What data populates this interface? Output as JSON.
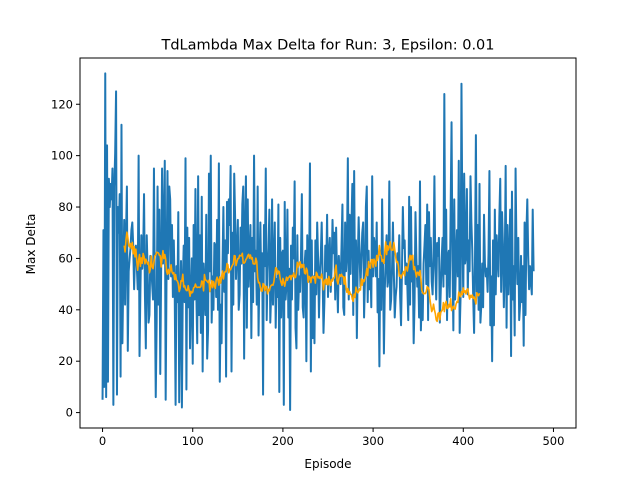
{
  "chart_data": {
    "type": "line",
    "title": "TdLambda Max Delta for Run: 3, Epsilon: 0.01",
    "xlabel": "Episode",
    "ylabel": "Max Delta",
    "xlim": [
      -25,
      525
    ],
    "ylim": [
      -6,
      138
    ],
    "xticks": [
      0,
      100,
      200,
      300,
      400,
      500
    ],
    "yticks": [
      0,
      20,
      40,
      60,
      80,
      100,
      120
    ],
    "grid": false,
    "legend": "none",
    "series": [
      {
        "color": "#1f77b4",
        "x_start": 0,
        "x_step": 1,
        "values": [
          5,
          71,
          10,
          132,
          6,
          104,
          12,
          91,
          80,
          89,
          83,
          95,
          3,
          88,
          101,
          125,
          7,
          80,
          70,
          85,
          14,
          112,
          27,
          52,
          75,
          42,
          68,
          88,
          24,
          55,
          60,
          64,
          71,
          74,
          65,
          48,
          61,
          65,
          57,
          48,
          100,
          22,
          48,
          69,
          56,
          61,
          85,
          46,
          25,
          69,
          55,
          35,
          38,
          61,
          57,
          50,
          44,
          95,
          48,
          6,
          35,
          88,
          42,
          79,
          15,
          56,
          95,
          58,
          70,
          98,
          5,
          55,
          94,
          52,
          88,
          83,
          53,
          73,
          45,
          67,
          48,
          3,
          57,
          43,
          78,
          4,
          42,
          59,
          2,
          51,
          65,
          43,
          99,
          9,
          72,
          41,
          68,
          25,
          45,
          60,
          19,
          73,
          44,
          87,
          46,
          27,
          92,
          38,
          69,
          31,
          84,
          16,
          58,
          48,
          38,
          77,
          21,
          32,
          93,
          55,
          100,
          35,
          53,
          40,
          66,
          65,
          45,
          75,
          40,
          97,
          12,
          42,
          27,
          56,
          80,
          47,
          67,
          14,
          82,
          62,
          83,
          73,
          96,
          16,
          70,
          42,
          93,
          76,
          52,
          63,
          75,
          40,
          46,
          72,
          58,
          81,
          88,
          21,
          70,
          92,
          33,
          83,
          49,
          61,
          73,
          29,
          68,
          43,
          100,
          55,
          63,
          42,
          88,
          30,
          56,
          74,
          49,
          62,
          7,
          73,
          57,
          95,
          36,
          55,
          64,
          79,
          35,
          47,
          83,
          42,
          58,
          74,
          33,
          52,
          45,
          81,
          8,
          68,
          37,
          62,
          63,
          3,
          82,
          44,
          50,
          79,
          37,
          56,
          1,
          65,
          44,
          72,
          60,
          90,
          33,
          25,
          69,
          40,
          53,
          47,
          60,
          85,
          41,
          37,
          57,
          63,
          20,
          69,
          53,
          51,
          97,
          16,
          67,
          29,
          53,
          27,
          67,
          46,
          74,
          60,
          37,
          54,
          61,
          74,
          54,
          31,
          43,
          65,
          55,
          77,
          45,
          61,
          68,
          47,
          56,
          75,
          62,
          70,
          44,
          72,
          53,
          39,
          61,
          52,
          50,
          65,
          81,
          41,
          38,
          74,
          55,
          62,
          99,
          44,
          77,
          54,
          73,
          89,
          38,
          94,
          46,
          67,
          29,
          59,
          76,
          61,
          49,
          60,
          70,
          74,
          37,
          52,
          80,
          88,
          43,
          63,
          48,
          58,
          41,
          92,
          53,
          68,
          65,
          53,
          74,
          39,
          52,
          18,
          63,
          40,
          83,
          57,
          23,
          48,
          60,
          69,
          49,
          52,
          90,
          40,
          44,
          56,
          74,
          55,
          37,
          45,
          49,
          62,
          56,
          69,
          45,
          34,
          55,
          80,
          64,
          67,
          50,
          58,
          49,
          36,
          84,
          42,
          80,
          51,
          58,
          27,
          43,
          78,
          60,
          49,
          57,
          37,
          90,
          32,
          46,
          36,
          58,
          65,
          73,
          50,
          81,
          36,
          78,
          57,
          68,
          51,
          46,
          61,
          92,
          56,
          44,
          66,
          61,
          68,
          35,
          47,
          59,
          68,
          49,
          124,
          54,
          79,
          36,
          61,
          63,
          45,
          79,
          113,
          59,
          32,
          83,
          44,
          60,
          71,
          53,
          98,
          31,
          45,
          128,
          72,
          45,
          93,
          58,
          61,
          87,
          46,
          67,
          55,
          92,
          74,
          63,
          45,
          31,
          59,
          108,
          47,
          73,
          40,
          89,
          35,
          42,
          58,
          41,
          77,
          58,
          53,
          56,
          47,
          62,
          94,
          34,
          53,
          20,
          67,
          34,
          79,
          46,
          69,
          61,
          53,
          76,
          91,
          47,
          78,
          65,
          41,
          57,
          96,
          33,
          73,
          46,
          60,
          79,
          22,
          86,
          44,
          57,
          30,
          95,
          63,
          50,
          68,
          36,
          42,
          61,
          43,
          57,
          26,
          74,
          38,
          70,
          83,
          61,
          48,
          57,
          51,
          46,
          79,
          55
        ]
      },
      {
        "color": "#ffa500",
        "x_start": 24,
        "x_step": 1,
        "values": [
          65,
          62.5,
          67.3,
          70.2,
          68.2,
          65.1,
          64.5,
          65.8,
          63.8,
          66.2,
          61.8,
          64.6,
          60.6,
          63.6,
          58.8,
          55.4,
          59.5,
          61.5,
          56.9,
          60.2,
          58.1,
          61.9,
          60.7,
          57.9,
          59.7,
          58.9,
          57.8,
          58.5,
          54.4,
          55.8,
          60.9,
          56.7,
          56,
          58.6,
          61,
          61.3,
          62.4,
          62.3,
          62.1,
          61.2,
          61.1,
          56.7,
          60.2,
          63,
          59.9,
          61.5,
          59.7,
          55,
          53.8,
          55.7,
          54.1,
          55.2,
          57.5,
          54.7,
          54,
          54.5,
          51.8,
          53.7,
          51.5,
          51.2,
          50.2,
          47.1,
          48.3,
          51.3,
          51.2,
          53.8,
          48.9,
          49.4,
          48.1,
          47.5,
          47.5,
          49.4,
          47.5,
          45.3,
          47.2,
          46.6,
          46.9,
          48.6,
          48.8,
          50,
          48.9,
          48.7,
          48.8,
          48.8,
          48.7,
          49.1,
          51.2,
          51,
          47.4,
          53.7,
          51.6,
          51.5,
          51.1,
          50.6,
          51.5,
          47.1,
          49.1,
          51.4,
          48.6,
          51,
          49.4,
          48.3,
          51.5,
          52.7,
          51.6,
          49.6,
          52.8,
          50.4,
          52.8,
          55.1,
          52,
          54.2,
          54.9,
          54.8,
          58,
          57.5,
          54.4,
          55.8,
          55.6,
          56.6,
          57.3,
          57.9,
          61.1,
          61,
          57.2,
          58.7,
          59.9,
          60,
          61.2,
          61,
          61,
          62,
          58.2,
          58.2,
          58.6,
          59.6,
          60.1,
          61.1,
          61.6,
          60.1,
          61.3,
          59.8,
          60.3,
          57.9,
          57.9,
          57.8,
          60.1,
          58.8,
          52.5,
          50.5,
          50.6,
          48.8,
          47.3,
          47.3,
          50.2,
          49.8,
          47.5,
          49.1,
          49.1,
          46.2,
          48,
          47.4,
          48.9,
          49.5,
          49.7,
          49.6,
          50.9,
          53.8,
          56.4,
          56,
          53.9,
          55.1,
          54.8,
          52.1,
          50.6,
          49.5,
          52.2,
          50.6,
          49.2,
          51.1,
          52.7,
          51.5,
          52.5,
          52.8,
          53.3,
          51.7,
          53.4,
          53,
          54.3,
          52.5,
          52.6,
          54.2,
          58.5,
          56.7,
          58.1,
          58.7,
          56.3,
          57.6,
          56.6,
          57.7,
          54.3,
          54,
          56.2,
          55.3,
          50.7,
          53,
          52.6,
          50.6,
          52.6,
          53,
          52.4,
          52.9,
          50.4,
          54.6,
          53.9,
          52.4,
          52.9,
          52.2,
          52.5,
          53.9,
          51.3,
          47.8,
          51.1,
          51.8,
          49.9,
          52,
          49.7,
          53,
          50.5,
          49.5,
          51.8,
          51.2,
          52.4,
          52.4,
          55.6,
          57.4,
          51.5,
          50,
          52.1,
          53.7,
          53,
          53.8,
          53,
          52.9,
          50,
          52.8,
          48.5,
          46.8,
          48.3,
          46,
          47.1,
          46,
          46,
          44.1,
          43.3,
          46.1,
          44.8,
          48.8,
          47.5,
          46.6,
          47.1,
          48.2,
          47.7,
          52,
          49.6,
          51.7,
          51,
          52.1,
          53.5,
          55.9,
          53.3,
          58.8,
          56.7,
          56.2,
          59.5,
          59.5,
          56.6,
          59.7,
          58.6,
          57,
          61.1,
          59.2,
          61.6,
          65,
          61.3,
          61.1,
          58.8,
          59.5,
          58.1,
          62.6,
          66.4,
          61.5,
          64.9,
          63.3,
          64.5,
          66.4,
          63.3,
          63.3,
          63.2,
          66.2,
          63.5,
          60.7,
          58.5,
          58.8,
          57.3,
          53.1,
          53.5,
          52.3,
          53.5,
          54.2,
          54.9,
          53.3,
          56.7,
          56.6,
          55.1,
          57.3,
          59.6,
          61.2,
          59.4,
          61,
          61.2,
          55.7,
          56.8,
          54.8,
          52.8,
          54.6,
          54.6,
          53.4,
          55.3,
          52,
          47.6,
          46.7,
          46.2,
          46.4,
          46.3,
          47.2,
          49,
          48.7,
          47.9,
          44.2,
          41.7,
          39.3,
          40.1,
          42.2,
          40,
          38.5,
          36.1,
          35.5,
          38.6,
          38.9,
          36.1,
          39,
          39.5,
          40.1,
          42.8,
          39.3,
          42.2,
          43.3,
          40.5,
          40.6,
          42.1,
          41.1,
          44.3,
          39.7,
          40.6,
          41.4,
          40.4,
          40.3,
          42.2,
          43.2,
          42.9,
          46.9,
          45.9,
          45.1,
          47.1,
          45.9,
          48.5,
          46.8,
          47.4,
          46.2,
          47.8,
          48.2,
          46,
          44.2,
          45.6,
          44.9,
          45.8,
          44.4,
          45,
          43.9,
          42.3,
          46.6,
          45.9,
          45.5,
          46.5
        ]
      }
    ]
  }
}
